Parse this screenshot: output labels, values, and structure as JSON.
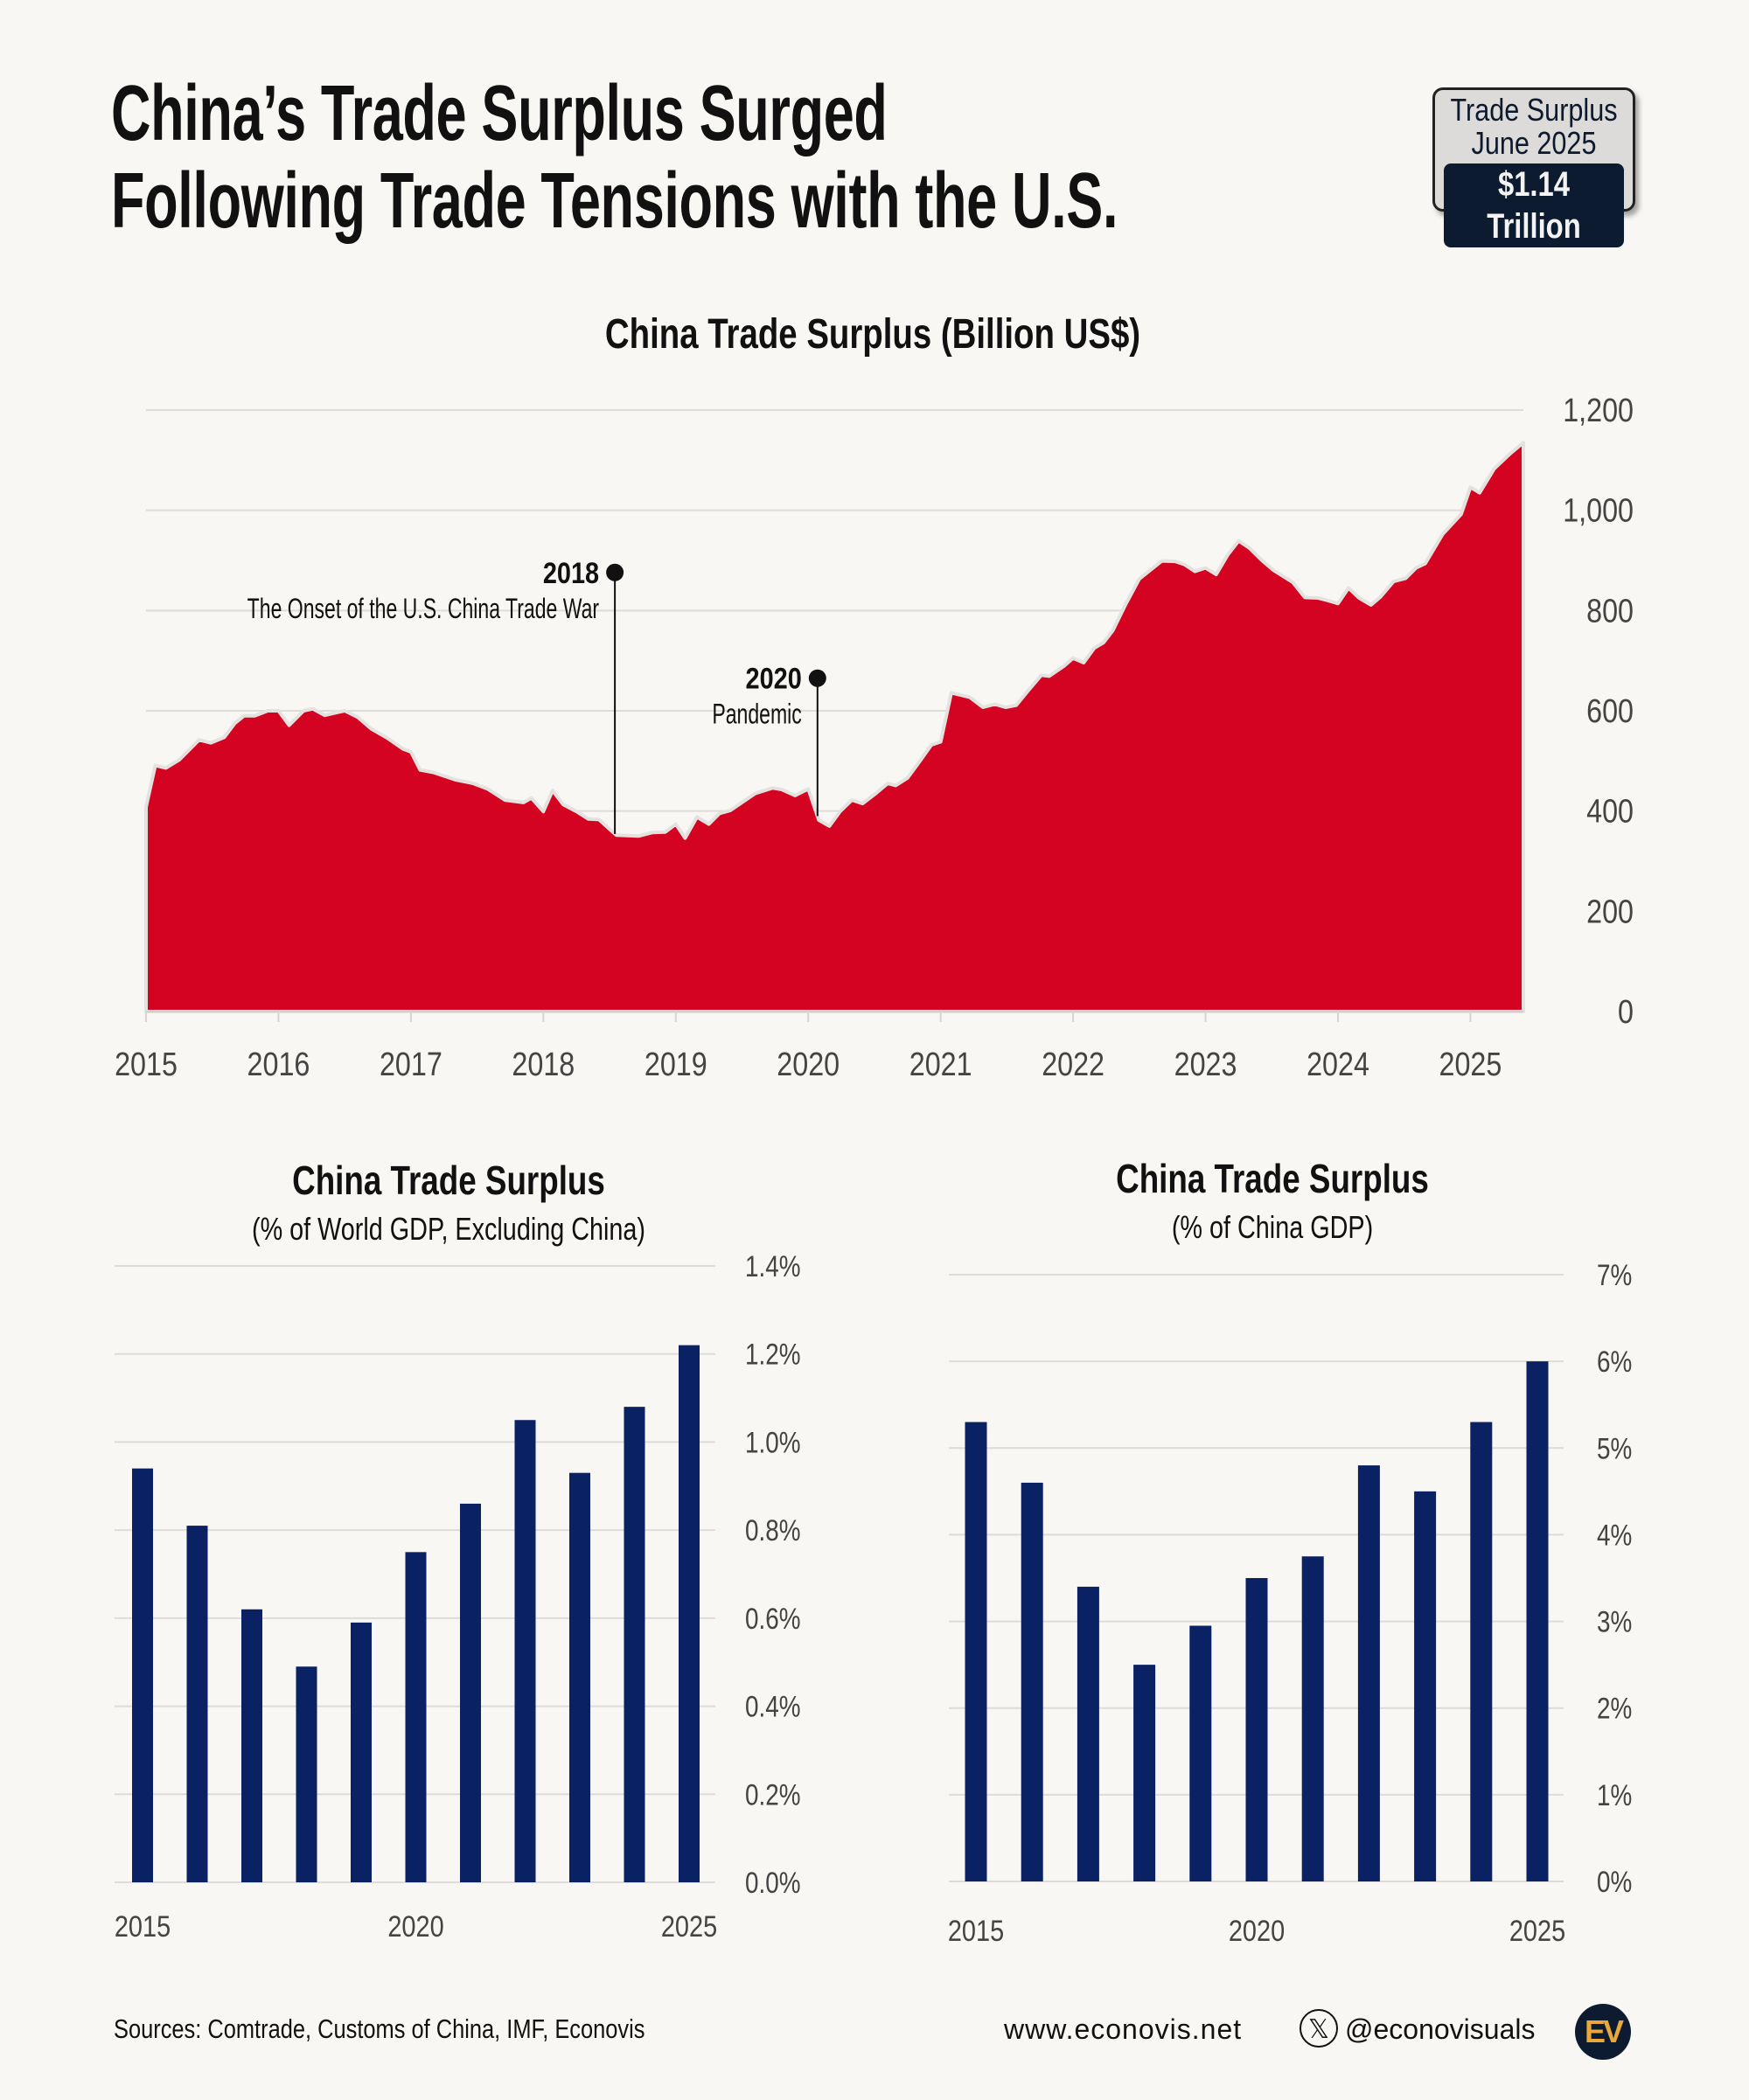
{
  "title_lines": [
    "China’s Trade Surplus Surged",
    "Following Trade Tensions with the U.S."
  ],
  "badge": {
    "line1": "Trade Surplus",
    "line2": "June 2025",
    "value": "$1.14 Trillion"
  },
  "colors": {
    "area": "#d50322",
    "bars": "#0a2164",
    "background": "#f8f7f3",
    "badge_dark": "#0c1b30",
    "logo_accent": "#e8a93a"
  },
  "chart_data": [
    {
      "type": "area",
      "title": "China Trade Surplus (Billion US$)",
      "xlabel": "",
      "ylabel": "",
      "xlim": [
        2015,
        2025.4
      ],
      "ylim": [
        0,
        1200
      ],
      "yticks": [
        0,
        200,
        400,
        600,
        800,
        1000,
        1200
      ],
      "ytick_labels": [
        "0",
        "200",
        "400",
        "600",
        "800",
        "1,000",
        "1,200"
      ],
      "xticks": [
        2015,
        2016,
        2017,
        2018,
        2019,
        2020,
        2021,
        2022,
        2023,
        2024,
        2025
      ],
      "xtick_labels": [
        "2015",
        "2016",
        "2017",
        "2018",
        "2019",
        "2020",
        "2021",
        "2022",
        "2023",
        "2024",
        "2025"
      ],
      "y_axis_side": "right",
      "grid": true,
      "points": [
        [
          2015.0,
          408
        ],
        [
          2015.07,
          491
        ],
        [
          2015.15,
          486
        ],
        [
          2015.25,
          502
        ],
        [
          2015.4,
          542
        ],
        [
          2015.49,
          536
        ],
        [
          2015.59,
          547
        ],
        [
          2015.67,
          575
        ],
        [
          2015.74,
          590
        ],
        [
          2015.82,
          590
        ],
        [
          2015.92,
          600
        ],
        [
          2016.0,
          600
        ],
        [
          2016.08,
          571
        ],
        [
          2016.19,
          600
        ],
        [
          2016.26,
          604
        ],
        [
          2016.35,
          591
        ],
        [
          2016.43,
          596
        ],
        [
          2016.5,
          600
        ],
        [
          2016.6,
          587
        ],
        [
          2016.7,
          564
        ],
        [
          2016.82,
          546
        ],
        [
          2016.94,
          524
        ],
        [
          2017.0,
          518
        ],
        [
          2017.07,
          482
        ],
        [
          2017.17,
          477
        ],
        [
          2017.34,
          462
        ],
        [
          2017.47,
          455
        ],
        [
          2017.58,
          444
        ],
        [
          2017.71,
          422
        ],
        [
          2017.85,
          417
        ],
        [
          2017.91,
          426
        ],
        [
          2018.0,
          399
        ],
        [
          2018.07,
          441
        ],
        [
          2018.15,
          413
        ],
        [
          2018.25,
          399
        ],
        [
          2018.34,
          384
        ],
        [
          2018.42,
          383
        ],
        [
          2018.55,
          352
        ],
        [
          2018.72,
          350
        ],
        [
          2018.82,
          357
        ],
        [
          2018.92,
          358
        ],
        [
          2019.0,
          374
        ],
        [
          2019.07,
          346
        ],
        [
          2019.16,
          388
        ],
        [
          2019.25,
          374
        ],
        [
          2019.33,
          395
        ],
        [
          2019.41,
          401
        ],
        [
          2019.5,
          417
        ],
        [
          2019.6,
          435
        ],
        [
          2019.73,
          446
        ],
        [
          2019.8,
          443
        ],
        [
          2019.9,
          431
        ],
        [
          2020.0,
          444
        ],
        [
          2020.08,
          382
        ],
        [
          2020.16,
          370
        ],
        [
          2020.24,
          399
        ],
        [
          2020.33,
          422
        ],
        [
          2020.41,
          415
        ],
        [
          2020.51,
          435
        ],
        [
          2020.6,
          455
        ],
        [
          2020.66,
          451
        ],
        [
          2020.75,
          466
        ],
        [
          2020.85,
          502
        ],
        [
          2020.93,
          532
        ],
        [
          2021.0,
          538
        ],
        [
          2021.08,
          636
        ],
        [
          2021.22,
          627
        ],
        [
          2021.32,
          607
        ],
        [
          2021.41,
          613
        ],
        [
          2021.49,
          607
        ],
        [
          2021.57,
          611
        ],
        [
          2021.66,
          640
        ],
        [
          2021.76,
          671
        ],
        [
          2021.82,
          669
        ],
        [
          2021.93,
          689
        ],
        [
          2022.0,
          705
        ],
        [
          2022.08,
          696
        ],
        [
          2022.16,
          725
        ],
        [
          2022.23,
          736
        ],
        [
          2022.3,
          760
        ],
        [
          2022.4,
          814
        ],
        [
          2022.5,
          863
        ],
        [
          2022.67,
          899
        ],
        [
          2022.77,
          898
        ],
        [
          2022.84,
          892
        ],
        [
          2022.92,
          878
        ],
        [
          2023.0,
          885
        ],
        [
          2023.08,
          872
        ],
        [
          2023.17,
          912
        ],
        [
          2023.25,
          939
        ],
        [
          2023.33,
          925
        ],
        [
          2023.43,
          899
        ],
        [
          2023.51,
          881
        ],
        [
          2023.66,
          856
        ],
        [
          2023.75,
          826
        ],
        [
          2023.85,
          825
        ],
        [
          2023.91,
          821
        ],
        [
          2024.0,
          814
        ],
        [
          2024.08,
          845
        ],
        [
          2024.16,
          825
        ],
        [
          2024.25,
          811
        ],
        [
          2024.32,
          827
        ],
        [
          2024.42,
          858
        ],
        [
          2024.51,
          864
        ],
        [
          2024.59,
          885
        ],
        [
          2024.66,
          894
        ],
        [
          2024.79,
          952
        ],
        [
          2024.93,
          992
        ],
        [
          2025.0,
          1046
        ],
        [
          2025.07,
          1035
        ],
        [
          2025.18,
          1083
        ],
        [
          2025.3,
          1113
        ],
        [
          2025.4,
          1135
        ]
      ],
      "annotations": [
        {
          "x": 2018.54,
          "marker_value": 876,
          "label": "2018",
          "text": "The Onset of the U.S. China Trade War"
        },
        {
          "x": 2020.07,
          "marker_value": 665,
          "label": "2020",
          "text": "Pandemic"
        }
      ]
    },
    {
      "type": "bar",
      "title": "China Trade Surplus",
      "subtitle": "(% of World GDP, Excluding China)",
      "categories": [
        2015,
        2016,
        2017,
        2018,
        2019,
        2020,
        2021,
        2022,
        2023,
        2024,
        2025
      ],
      "values": [
        0.94,
        0.81,
        0.62,
        0.49,
        0.59,
        0.75,
        0.86,
        1.05,
        0.93,
        1.08,
        1.22
      ],
      "xtick_labels": [
        "2015",
        "2020",
        "2025"
      ],
      "ylim": [
        0,
        1.4
      ],
      "yticks": [
        0,
        0.2,
        0.4,
        0.6,
        0.8,
        1.0,
        1.2,
        1.4
      ],
      "ytick_labels": [
        "0.0%",
        "0.2%",
        "0.4%",
        "0.6%",
        "0.8%",
        "1.0%",
        "1.2%",
        "1.4%"
      ],
      "y_axis_side": "right",
      "grid": true
    },
    {
      "type": "bar",
      "title": "China Trade Surplus",
      "subtitle": "(% of China GDP)",
      "categories": [
        2015,
        2016,
        2017,
        2018,
        2019,
        2020,
        2021,
        2022,
        2023,
        2024,
        2025
      ],
      "values": [
        5.3,
        4.6,
        3.4,
        2.5,
        2.95,
        3.5,
        3.75,
        4.8,
        4.5,
        5.3,
        6.0
      ],
      "xtick_labels": [
        "2015",
        "2020",
        "2025"
      ],
      "ylim": [
        0,
        7
      ],
      "yticks": [
        0,
        1,
        2,
        3,
        4,
        5,
        6,
        7
      ],
      "ytick_labels": [
        "0%",
        "1%",
        "2%",
        "3%",
        "4%",
        "5%",
        "6%",
        "7%"
      ],
      "y_axis_side": "right",
      "grid": true
    }
  ],
  "footer": {
    "sources": "Sources: Comtrade, Customs of China, IMF, Econovis",
    "website": "www.econovis.net",
    "x_icon": "x-logo-icon",
    "handle": "@econovisuals",
    "logo": "EV"
  }
}
